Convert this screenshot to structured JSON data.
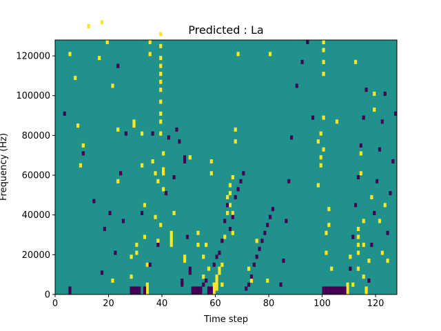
{
  "chart_data": {
    "type": "heatmap",
    "title": "Predicted : La",
    "xlabel": "Time step",
    "ylabel": "Frequency (Hz)",
    "xlim": [
      0,
      128
    ],
    "ylim": [
      0,
      128000
    ],
    "x_ticks": [
      0,
      20,
      40,
      60,
      80,
      100,
      120
    ],
    "y_ticks": [
      0,
      20000,
      40000,
      60000,
      80000,
      100000,
      120000
    ],
    "x_tick_labels": [
      "0",
      "20",
      "40",
      "60",
      "80",
      "100",
      "120"
    ],
    "y_tick_labels": [
      "0",
      "20000",
      "40000",
      "60000",
      "80000",
      "100000",
      "120000"
    ],
    "n_time_steps": 128,
    "n_freq_bins": 64,
    "freq_bin_hz": 2000,
    "colors": {
      "low": "#440154",
      "mid": "#21918c",
      "high": "#fde725"
    },
    "default_level": "mid",
    "high_cells": [
      [
        5,
        60
      ],
      [
        7,
        54
      ],
      [
        8,
        42
      ],
      [
        9,
        32
      ],
      [
        10,
        37
      ],
      [
        12,
        67
      ],
      [
        16,
        59
      ],
      [
        17,
        68
      ],
      [
        19,
        63
      ],
      [
        21,
        3
      ],
      [
        21,
        52
      ],
      [
        23,
        28
      ],
      [
        23,
        41
      ],
      [
        28,
        4
      ],
      [
        28,
        9
      ],
      [
        29,
        42
      ],
      [
        29,
        43
      ],
      [
        30,
        10
      ],
      [
        30,
        12
      ],
      [
        32,
        32
      ],
      [
        32,
        40
      ],
      [
        33,
        14
      ],
      [
        33,
        22
      ],
      [
        34,
        0
      ],
      [
        34,
        1
      ],
      [
        34,
        2
      ],
      [
        34,
        7
      ],
      [
        35,
        60
      ],
      [
        35,
        63
      ],
      [
        36,
        33
      ],
      [
        37,
        19
      ],
      [
        37,
        30
      ],
      [
        38,
        13
      ],
      [
        38,
        28
      ],
      [
        39,
        17
      ],
      [
        40,
        26
      ],
      [
        40,
        35
      ],
      [
        39,
        40
      ],
      [
        39,
        43
      ],
      [
        39,
        45
      ],
      [
        39,
        48
      ],
      [
        39,
        51
      ],
      [
        39,
        53
      ],
      [
        39,
        55
      ],
      [
        39,
        57
      ],
      [
        39,
        59
      ],
      [
        39,
        62
      ],
      [
        39,
        65
      ],
      [
        40,
        30
      ],
      [
        40,
        31
      ],
      [
        43,
        12
      ],
      [
        43,
        13
      ],
      [
        43,
        14
      ],
      [
        43,
        15
      ],
      [
        44,
        20
      ],
      [
        48,
        8
      ],
      [
        48,
        9
      ],
      [
        50,
        34
      ],
      [
        52,
        1
      ],
      [
        53,
        12
      ],
      [
        53,
        15
      ],
      [
        55,
        4
      ],
      [
        55,
        9
      ],
      [
        56,
        12
      ],
      [
        57,
        6
      ],
      [
        58,
        30
      ],
      [
        58,
        33
      ],
      [
        59,
        0
      ],
      [
        59,
        1
      ],
      [
        59,
        2
      ],
      [
        60,
        1
      ],
      [
        60,
        2
      ],
      [
        60,
        3
      ],
      [
        60,
        4
      ],
      [
        61,
        5
      ],
      [
        61,
        6
      ],
      [
        62,
        2
      ],
      [
        62,
        7
      ],
      [
        63,
        14
      ],
      [
        64,
        20
      ],
      [
        64,
        24
      ],
      [
        65,
        22
      ],
      [
        65,
        25
      ],
      [
        65,
        27
      ],
      [
        66,
        15
      ],
      [
        66,
        20
      ],
      [
        66,
        29
      ],
      [
        67,
        38
      ],
      [
        67,
        41
      ],
      [
        68,
        60
      ],
      [
        72,
        6
      ],
      [
        73,
        3
      ],
      [
        75,
        13
      ],
      [
        79,
        3
      ],
      [
        80,
        60
      ],
      [
        98,
        27
      ],
      [
        98,
        38
      ],
      [
        99,
        32
      ],
      [
        99,
        34
      ],
      [
        99,
        40
      ],
      [
        100,
        36
      ],
      [
        100,
        44
      ],
      [
        100,
        55
      ],
      [
        100,
        58
      ],
      [
        100,
        61
      ],
      [
        100,
        63
      ],
      [
        101,
        10
      ],
      [
        101,
        15
      ],
      [
        102,
        17
      ],
      [
        102,
        21
      ],
      [
        103,
        6
      ],
      [
        105,
        43
      ],
      [
        109,
        0
      ],
      [
        109,
        1
      ],
      [
        109,
        2
      ],
      [
        110,
        9
      ],
      [
        111,
        2
      ],
      [
        112,
        58
      ],
      [
        113,
        6
      ],
      [
        113,
        10
      ],
      [
        113,
        12
      ],
      [
        113,
        14
      ],
      [
        113,
        16
      ],
      [
        114,
        30
      ],
      [
        114,
        35
      ],
      [
        115,
        4
      ],
      [
        115,
        12
      ],
      [
        115,
        18
      ],
      [
        116,
        0
      ],
      [
        116,
        1
      ],
      [
        117,
        8
      ],
      [
        118,
        24
      ],
      [
        119,
        46
      ],
      [
        119,
        50
      ],
      [
        121,
        18
      ],
      [
        122,
        10
      ],
      [
        123,
        22
      ],
      [
        124,
        8
      ]
    ],
    "low_cells": [
      [
        3,
        45
      ],
      [
        5,
        0
      ],
      [
        5,
        1
      ],
      [
        10,
        35
      ],
      [
        14,
        23
      ],
      [
        17,
        5
      ],
      [
        18,
        16
      ],
      [
        20,
        20
      ],
      [
        22,
        10
      ],
      [
        23,
        57
      ],
      [
        24,
        30
      ],
      [
        25,
        18
      ],
      [
        26,
        40
      ],
      [
        28,
        0
      ],
      [
        28,
        1
      ],
      [
        29,
        0
      ],
      [
        29,
        1
      ],
      [
        30,
        0
      ],
      [
        30,
        1
      ],
      [
        31,
        0
      ],
      [
        31,
        1
      ],
      [
        32,
        20
      ],
      [
        33,
        0
      ],
      [
        33,
        1
      ],
      [
        35,
        7
      ],
      [
        36,
        40
      ],
      [
        38,
        12
      ],
      [
        41,
        25
      ],
      [
        42,
        39
      ],
      [
        44,
        29
      ],
      [
        45,
        41
      ],
      [
        46,
        38
      ],
      [
        47,
        2
      ],
      [
        47,
        3
      ],
      [
        48,
        33
      ],
      [
        48,
        34
      ],
      [
        49,
        14
      ],
      [
        50,
        5
      ],
      [
        50,
        6
      ],
      [
        51,
        0
      ],
      [
        51,
        1
      ],
      [
        52,
        0
      ],
      [
        52,
        1
      ],
      [
        53,
        0
      ],
      [
        53,
        1
      ],
      [
        54,
        0
      ],
      [
        54,
        1
      ],
      [
        55,
        2
      ],
      [
        56,
        3
      ],
      [
        57,
        0
      ],
      [
        57,
        1
      ],
      [
        58,
        0
      ],
      [
        58,
        1
      ],
      [
        59,
        7
      ],
      [
        60,
        9
      ],
      [
        61,
        10
      ],
      [
        62,
        13
      ],
      [
        63,
        18
      ],
      [
        64,
        22
      ],
      [
        65,
        16
      ],
      [
        66,
        19
      ],
      [
        67,
        24
      ],
      [
        68,
        26
      ],
      [
        69,
        28
      ],
      [
        70,
        30
      ],
      [
        71,
        1
      ],
      [
        72,
        2
      ],
      [
        73,
        4
      ],
      [
        74,
        7
      ],
      [
        75,
        9
      ],
      [
        76,
        11
      ],
      [
        77,
        13
      ],
      [
        78,
        15
      ],
      [
        79,
        17
      ],
      [
        80,
        19
      ],
      [
        81,
        21
      ],
      [
        84,
        2
      ],
      [
        85,
        8
      ],
      [
        86,
        18
      ],
      [
        87,
        28
      ],
      [
        88,
        39
      ],
      [
        90,
        52
      ],
      [
        92,
        58
      ],
      [
        94,
        63
      ],
      [
        96,
        44
      ],
      [
        100,
        0
      ],
      [
        100,
        1
      ],
      [
        101,
        0
      ],
      [
        101,
        1
      ],
      [
        102,
        0
      ],
      [
        102,
        1
      ],
      [
        103,
        0
      ],
      [
        103,
        1
      ],
      [
        104,
        0
      ],
      [
        104,
        1
      ],
      [
        105,
        0
      ],
      [
        105,
        1
      ],
      [
        106,
        0
      ],
      [
        106,
        1
      ],
      [
        107,
        0
      ],
      [
        107,
        1
      ],
      [
        108,
        0
      ],
      [
        108,
        1
      ],
      [
        110,
        6
      ],
      [
        111,
        14
      ],
      [
        112,
        22
      ],
      [
        113,
        29
      ],
      [
        114,
        37
      ],
      [
        115,
        44
      ],
      [
        116,
        51
      ],
      [
        117,
        3
      ],
      [
        118,
        12
      ],
      [
        119,
        20
      ],
      [
        120,
        28
      ],
      [
        121,
        36
      ],
      [
        122,
        43
      ],
      [
        123,
        50
      ],
      [
        124,
        15
      ],
      [
        125,
        25
      ],
      [
        126,
        33
      ],
      [
        127,
        45
      ]
    ]
  }
}
